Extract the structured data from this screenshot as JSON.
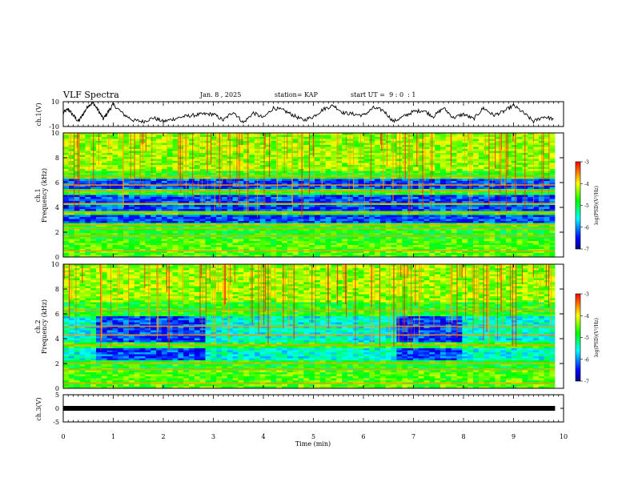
{
  "header": {
    "title": "VLF Spectra",
    "date": "Jan. 8 , 2025",
    "station": "station= KAP",
    "start_ut": "start UT =  9 : 0  : 1"
  },
  "chart_data": [
    {
      "type": "line",
      "panel": "ch1-waveform",
      "ylabel": "ch.1(V)",
      "ylim": [
        -10,
        10
      ],
      "yticks": [
        "10",
        "-10"
      ],
      "xlim": [
        0,
        10
      ],
      "series": [
        {
          "x": [
            0,
            0.1,
            0.2,
            0.3,
            0.4,
            0.5,
            0.6,
            0.7,
            0.8,
            0.9,
            1.0,
            1.2,
            1.4,
            1.6,
            1.8,
            2.0,
            2.2,
            2.4,
            2.6,
            2.8,
            3.0,
            3.2,
            3.4,
            3.6,
            3.8,
            4.0,
            4.2,
            4.4,
            4.6,
            4.8,
            5.0,
            5.2,
            5.4,
            5.6,
            5.8,
            6.0,
            6.2,
            6.4,
            6.6,
            6.8,
            7.0,
            7.2,
            7.4,
            7.6,
            7.8,
            8.0,
            8.2,
            8.4,
            8.6,
            8.8,
            9.0,
            9.2,
            9.4,
            9.6,
            9.8
          ],
          "y": [
            1,
            4,
            -1,
            -6,
            0,
            7,
            9,
            3,
            -4,
            2,
            8,
            0,
            -5,
            -6,
            -3,
            -6,
            -4,
            -2,
            -1,
            0,
            0,
            -5,
            2,
            -7,
            1,
            -3,
            5,
            3,
            -1,
            -5,
            -2,
            4,
            7,
            1,
            0,
            -1,
            5,
            3,
            -6,
            -2,
            2,
            3,
            -2,
            5,
            -3,
            0,
            -4,
            5,
            -1,
            2,
            7,
            1,
            -6,
            -2,
            -4
          ]
        }
      ]
    },
    {
      "type": "heatmap",
      "panel": "ch1-spectrogram",
      "ylabel_top": "ch.1",
      "ylabel": "Frequency (kHz)",
      "ylim": [
        0,
        10
      ],
      "yticks": [
        "10",
        "8",
        "6",
        "4",
        "2",
        "0"
      ],
      "xlim": [
        0,
        10
      ],
      "data_x_max": 9.83,
      "colorbar": {
        "label": "log(PSD)(V²/Hz)",
        "range": [
          -7,
          -3
        ],
        "ticks": [
          "-3",
          "-4",
          "-5",
          "-6",
          "-7"
        ]
      },
      "quiet_bands_khz": [
        [
          5.5,
          6.3
        ],
        [
          4.4,
          5.0
        ],
        [
          3.7,
          4.2
        ],
        [
          2.7,
          3.4
        ]
      ],
      "lines_khz": [
        6.5,
        5.8,
        5.3,
        4.3,
        3.6,
        2.6,
        2.3,
        1.7,
        0.5
      ]
    },
    {
      "type": "heatmap",
      "panel": "ch2-spectrogram",
      "ylabel_top": "ch.2",
      "ylabel": "Frequency (kHz)",
      "ylim": [
        0,
        10
      ],
      "yticks": [
        "10",
        "8",
        "6",
        "4",
        "2",
        "0"
      ],
      "xlim": [
        0,
        10
      ],
      "data_x_max": 9.83,
      "colorbar": {
        "label": "log(PSD)(V²/Hz)",
        "range": [
          -7,
          -3
        ],
        "ticks": [
          "-3",
          "-4",
          "-5",
          "-6",
          "-7"
        ]
      },
      "quiet_bands_khz": [
        [
          3.7,
          5.8
        ],
        [
          2.2,
          3.2
        ]
      ],
      "lines_khz": [
        6.3,
        5.0,
        4.3,
        3.5,
        2.0,
        1.5,
        0.4
      ],
      "quiet_time_windows_min": [
        [
          0.7,
          2.8
        ],
        [
          6.7,
          8.0
        ]
      ]
    },
    {
      "type": "line",
      "panel": "ch3-waveform",
      "ylabel": "ch.3(V)",
      "ylim": [
        -5,
        5
      ],
      "yticks": [
        "5",
        "0",
        "-5"
      ],
      "xlim": [
        0,
        10
      ],
      "series": [
        {
          "x": [
            0,
            9.83
          ],
          "y": [
            0,
            0
          ]
        }
      ]
    }
  ],
  "x_axis": {
    "label": "Time (min)",
    "ticks": [
      "0",
      "1",
      "2",
      "3",
      "4",
      "5",
      "6",
      "7",
      "8",
      "9",
      "10"
    ]
  }
}
